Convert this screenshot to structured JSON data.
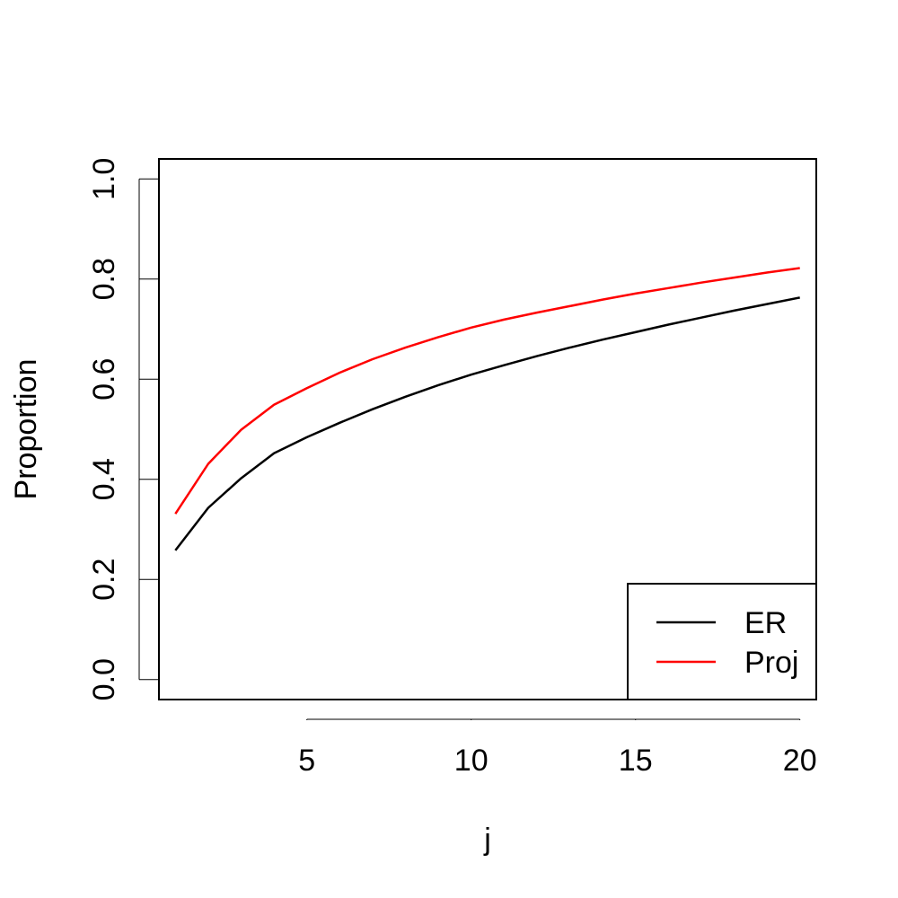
{
  "chart_data": {
    "type": "line",
    "title": "",
    "xlabel": "j",
    "ylabel": "Proportion",
    "xlim": [
      0.5,
      20.5
    ],
    "ylim": [
      -0.04,
      1.04
    ],
    "xticks": [
      5,
      10,
      15,
      20
    ],
    "xtick_labels": [
      "5",
      "10",
      "15",
      "20"
    ],
    "yticks": [
      0.0,
      0.2,
      0.4,
      0.6,
      0.8,
      1.0
    ],
    "ytick_labels": [
      "0.0",
      "0.2",
      "0.4",
      "0.6",
      "0.8",
      "1.0"
    ],
    "grid": false,
    "legend_position": "bottom-right",
    "x": [
      1,
      2,
      3,
      4,
      5,
      6,
      7,
      8,
      9,
      10,
      11,
      12,
      13,
      14,
      15,
      16,
      17,
      18,
      19,
      20
    ],
    "series": [
      {
        "name": "ER",
        "color": "#000000",
        "values": [
          0.258,
          0.343,
          0.402,
          0.452,
          0.484,
          0.513,
          0.54,
          0.565,
          0.588,
          0.609,
          0.628,
          0.646,
          0.663,
          0.679,
          0.694,
          0.709,
          0.723,
          0.737,
          0.75,
          0.763
        ]
      },
      {
        "name": "Proj",
        "color": "#ff0000",
        "values": [
          0.331,
          0.431,
          0.499,
          0.549,
          0.582,
          0.613,
          0.64,
          0.663,
          0.684,
          0.703,
          0.719,
          0.733,
          0.746,
          0.759,
          0.771,
          0.782,
          0.793,
          0.803,
          0.813,
          0.822
        ]
      }
    ]
  }
}
